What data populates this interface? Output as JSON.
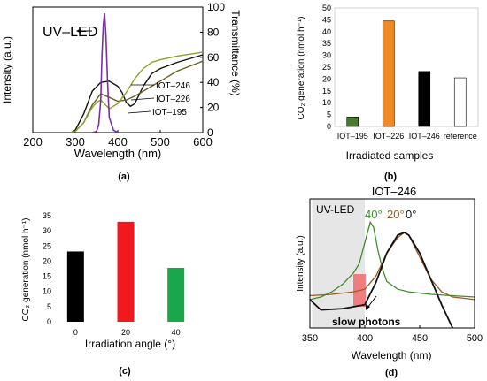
{
  "chart_data": [
    {
      "panel": "(a)",
      "type": "line",
      "xlabel": "Wavelength (nm)",
      "ylabel_left": "Intensity (a.u.)",
      "ylabel_right": "Transmittance (%)",
      "xlim": [
        200,
        600
      ],
      "ylim_right": [
        0,
        100
      ],
      "x_ticks": [
        200,
        300,
        400,
        500,
        600
      ],
      "y_ticks_right": [
        0,
        20,
        40,
        60,
        80,
        100
      ],
      "annotation": "UV–LED",
      "series": [
        {
          "name": "IOT–246",
          "color": "#111111",
          "x": [
            290,
            300,
            320,
            340,
            360,
            380,
            400,
            410,
            420,
            430,
            440,
            460,
            480,
            500,
            540,
            600
          ],
          "y": [
            0,
            2,
            15,
            33,
            40,
            41,
            37,
            32,
            24,
            21,
            23,
            37,
            47,
            51,
            56,
            62
          ]
        },
        {
          "name": "IOT–226",
          "color": "#6b5e24",
          "x": [
            290,
            300,
            320,
            340,
            360,
            380,
            400,
            420,
            440,
            460,
            480,
            500,
            540,
            600
          ],
          "y": [
            0,
            1,
            8,
            22,
            31,
            28,
            25,
            26,
            29,
            33,
            37,
            41,
            49,
            57
          ]
        },
        {
          "name": "IOT–195",
          "color": "#8ea12a",
          "x": [
            290,
            300,
            320,
            340,
            350,
            360,
            380,
            400,
            420,
            440,
            460,
            480,
            500,
            540,
            600
          ],
          "y": [
            0,
            1,
            8,
            20,
            24,
            26,
            19,
            23,
            32,
            43,
            51,
            56,
            58,
            61,
            64
          ]
        },
        {
          "name": "UV–LED",
          "color": "#7b2fa8",
          "x": [
            340,
            350,
            355,
            360,
            363,
            366,
            369,
            372,
            376,
            380,
            390,
            400
          ],
          "y": [
            0,
            1,
            6,
            26,
            62,
            86,
            95,
            78,
            40,
            12,
            2,
            0
          ]
        }
      ]
    },
    {
      "panel": "(b)",
      "type": "bar",
      "xlabel": "Irradiated samples",
      "ylabel": "CO₂ generation (nmol h⁻¹)",
      "ylim": [
        0,
        50
      ],
      "y_ticks": [
        0,
        5,
        10,
        15,
        20,
        25,
        30,
        35,
        40,
        45,
        50
      ],
      "categories": [
        "IOT–195",
        "IOT–226",
        "IOT–246",
        "reference"
      ],
      "values": [
        4,
        44.5,
        23.2,
        20.5
      ],
      "colors": [
        "#4a7a32",
        "#f08a25",
        "#000000",
        "#ffffff"
      ]
    },
    {
      "panel": "(c)",
      "type": "bar",
      "xlabel": "Irradiation angle (°)",
      "ylabel": "CO₂ generation (nmol h⁻¹)",
      "ylim": [
        0,
        35
      ],
      "y_ticks": [
        0,
        5,
        10,
        15,
        20,
        25,
        30,
        35
      ],
      "categories": [
        "0",
        "20",
        "40"
      ],
      "values": [
        23.2,
        33,
        17.8
      ],
      "colors": [
        "#000000",
        "#f0191e",
        "#1aa64a"
      ]
    },
    {
      "panel": "(d)",
      "type": "line",
      "title": "IOT–246",
      "xlabel": "Wavelength (nm)",
      "ylabel": "Intensity (a.u.)",
      "xlim": [
        350,
        500
      ],
      "x_ticks": [
        350,
        400,
        450,
        500
      ],
      "uv_led_region": [
        352,
        400
      ],
      "uv_led_label": "UV-LED",
      "annotation": "slow photons",
      "series": [
        {
          "name": "40°",
          "color": "#3f8c2a",
          "x": [
            350,
            360,
            370,
            380,
            390,
            395,
            400,
            405,
            408,
            412,
            416,
            420,
            430,
            440,
            460,
            480,
            500
          ],
          "y": [
            0.22,
            0.24,
            0.28,
            0.34,
            0.43,
            0.5,
            0.66,
            0.82,
            0.78,
            0.6,
            0.46,
            0.36,
            0.3,
            0.28,
            0.26,
            0.25,
            0.24
          ]
        },
        {
          "name": "20°",
          "color": "#9a5a26",
          "x": [
            350,
            370,
            390,
            400,
            410,
            420,
            430,
            436,
            440,
            450,
            460,
            470,
            480,
            490,
            500
          ],
          "y": [
            0.25,
            0.26,
            0.28,
            0.3,
            0.4,
            0.58,
            0.7,
            0.74,
            0.72,
            0.55,
            0.38,
            0.28,
            0.24,
            0.23,
            0.22
          ]
        },
        {
          "name": "0°",
          "color": "#111111",
          "x": [
            350,
            360,
            380,
            400,
            410,
            420,
            430,
            436,
            440,
            450,
            460,
            470,
            480
          ],
          "y": [
            0.22,
            0.14,
            0.15,
            0.18,
            0.35,
            0.58,
            0.72,
            0.74,
            0.72,
            0.58,
            0.38,
            0.18,
            0.0
          ]
        }
      ]
    }
  ]
}
